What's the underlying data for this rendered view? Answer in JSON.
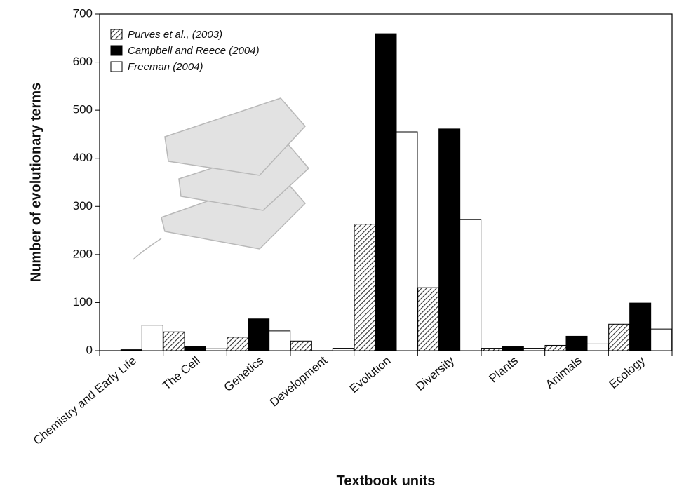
{
  "chart_data": {
    "type": "bar",
    "x_label": "Textbook units",
    "y_label": "Number of evolutionary terms",
    "categories": [
      "Chemistry and Early Life",
      "The Cell",
      "Genetics",
      "Development",
      "Evolution",
      "Diversity",
      "Plants",
      "Animals",
      "Ecology"
    ],
    "series": [
      {
        "name": "Purves et al., (2003)",
        "color": "#444444",
        "pattern": "hatch",
        "values": [
          0,
          39,
          28,
          20,
          263,
          131,
          5,
          11,
          55
        ]
      },
      {
        "name": "Campbell and Reece (2004)",
        "color": "#000000",
        "pattern": "solid",
        "values": [
          2,
          9,
          66,
          0,
          659,
          461,
          8,
          30,
          99
        ]
      },
      {
        "name": "Freeman (2004)",
        "color": "#ffffff",
        "pattern": "solid",
        "values": [
          53,
          4,
          41,
          5,
          455,
          273,
          5,
          14,
          45
        ]
      }
    ],
    "ylim": [
      0,
      700
    ],
    "yticks": [
      0,
      100,
      200,
      300,
      400,
      500,
      600,
      700
    ],
    "grid": false,
    "legend": "upper-left"
  }
}
